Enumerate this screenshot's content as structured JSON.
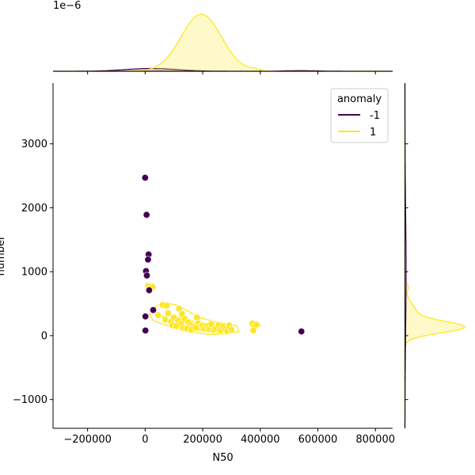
{
  "chart_data": {
    "type": "scatter",
    "kind": "jointplot",
    "xlabel": "N50",
    "ylabel": "number",
    "xlim": [
      -320000,
      860000
    ],
    "ylim": [
      -1450,
      3950
    ],
    "xticks": [
      -200000,
      0,
      200000,
      400000,
      600000,
      800000
    ],
    "xtick_labels": [
      "−200000",
      "0",
      "200000",
      "400000",
      "600000",
      "800000"
    ],
    "yticks": [
      -1000,
      0,
      1000,
      2000,
      3000
    ],
    "ytick_labels": [
      "−1000",
      "0",
      "1000",
      "2000",
      "3000"
    ],
    "top_marginal_offset_label": "1e−6",
    "legend": {
      "title": "anomaly",
      "placement": "top-right",
      "entries": [
        {
          "label": "-1",
          "color": "#440154"
        },
        {
          "label": "1",
          "color": "#fde725"
        }
      ]
    },
    "colors": {
      "anomaly": "#440154",
      "normal": "#fde725",
      "normal_edge": "#e8d400"
    },
    "series": [
      {
        "name": "-1",
        "points": [
          [
            0,
            2470
          ],
          [
            5000,
            1890
          ],
          [
            12000,
            1270
          ],
          [
            10000,
            1190
          ],
          [
            3000,
            1010
          ],
          [
            6000,
            940
          ],
          [
            14000,
            710
          ],
          [
            28000,
            400
          ],
          [
            1000,
            300
          ],
          [
            1000,
            80
          ],
          [
            543000,
            65
          ]
        ]
      },
      {
        "name": "1",
        "points": [
          [
            10000,
            780
          ],
          [
            18000,
            770
          ],
          [
            26000,
            760
          ],
          [
            60000,
            480
          ],
          [
            75000,
            470
          ],
          [
            80000,
            350
          ],
          [
            118000,
            420
          ],
          [
            128000,
            340
          ],
          [
            45000,
            320
          ],
          [
            70000,
            250
          ],
          [
            90000,
            220
          ],
          [
            100000,
            280
          ],
          [
            115000,
            230
          ],
          [
            125000,
            180
          ],
          [
            138000,
            260
          ],
          [
            150000,
            210
          ],
          [
            158000,
            170
          ],
          [
            168000,
            140
          ],
          [
            180000,
            280
          ],
          [
            185000,
            190
          ],
          [
            190000,
            130
          ],
          [
            198000,
            160
          ],
          [
            205000,
            110
          ],
          [
            215000,
            150
          ],
          [
            222000,
            100
          ],
          [
            230000,
            180
          ],
          [
            238000,
            90
          ],
          [
            246000,
            120
          ],
          [
            255000,
            160
          ],
          [
            262000,
            80
          ],
          [
            270000,
            140
          ],
          [
            278000,
            100
          ],
          [
            285000,
            70
          ],
          [
            292000,
            160
          ],
          [
            300000,
            90
          ],
          [
            372000,
            190
          ],
          [
            380000,
            150
          ],
          [
            386000,
            170
          ],
          [
            376000,
            80
          ],
          [
            95000,
            160
          ],
          [
            108000,
            150
          ],
          [
            132000,
            120
          ],
          [
            145000,
            110
          ],
          [
            160000,
            90
          ],
          [
            175000,
            120
          ]
        ]
      }
    ]
  }
}
